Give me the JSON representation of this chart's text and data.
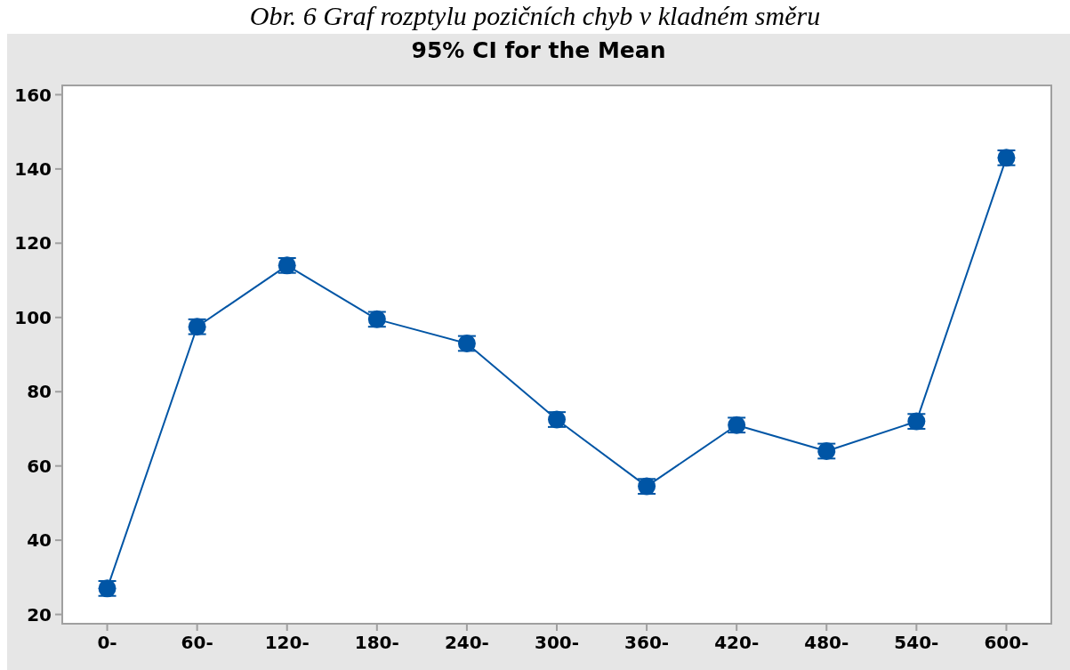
{
  "chart_data": {
    "type": "line",
    "title": "95% CI for the Mean",
    "annotations": [
      "Obr. 6 Graf rozptylu pozičních chyb v kladném směru"
    ],
    "categories": [
      "0-",
      "60-",
      "120-",
      "180-",
      "240-",
      "300-",
      "360-",
      "420-",
      "480-",
      "540-",
      "600-"
    ],
    "values": [
      27,
      97.5,
      114,
      99.5,
      93,
      72.5,
      54.5,
      71,
      64,
      72,
      143
    ],
    "errors": [
      2,
      2,
      2,
      2,
      2,
      2,
      2,
      2,
      2,
      2,
      2
    ],
    "color": "#0055a5",
    "marker": "circle",
    "line_style": "solid",
    "ylim": [
      17.5,
      162.5
    ],
    "yticks": [
      20,
      40,
      60,
      80,
      100,
      120,
      140,
      160
    ]
  }
}
